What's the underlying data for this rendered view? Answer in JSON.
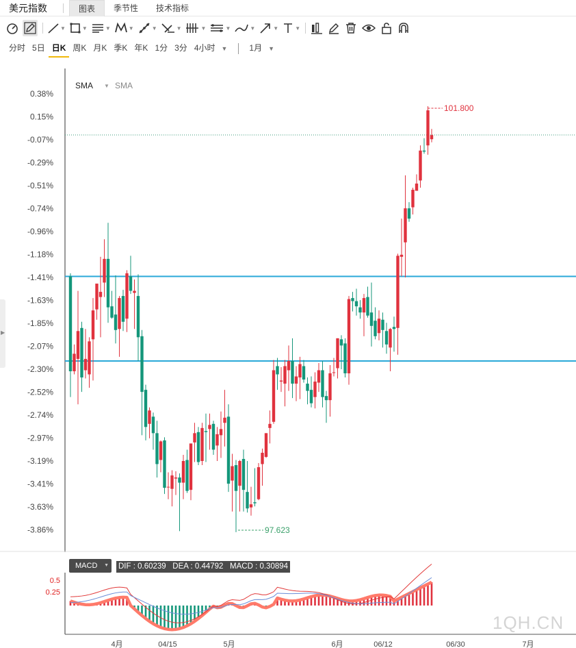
{
  "app": {
    "title": "美元指数"
  },
  "tabs": [
    {
      "label": "图表",
      "active": true
    },
    {
      "label": "季节性",
      "active": false
    },
    {
      "label": "技术指标",
      "active": false
    }
  ],
  "toolbar": {
    "tools": [
      "chart-type-icon",
      "pencil-icon",
      "line-icon",
      "rectangle-icon",
      "horizontal-lines-icon",
      "pattern-icon",
      "measure-icon",
      "fibonacci-icon",
      "bars-icon",
      "channel-icon",
      "brush-icon",
      "arrow-icon",
      "text-icon",
      "candles-icon",
      "edit-icon",
      "trash-icon",
      "eye-icon",
      "lock-icon",
      "magnet-icon"
    ]
  },
  "periods": {
    "items": [
      {
        "label": "分时",
        "active": false
      },
      {
        "label": "5日",
        "active": false
      },
      {
        "label": "日K",
        "active": true
      },
      {
        "label": "周K",
        "active": false
      },
      {
        "label": "月K",
        "active": false
      },
      {
        "label": "季K",
        "active": false
      },
      {
        "label": "年K",
        "active": false
      },
      {
        "label": "1分",
        "active": false
      },
      {
        "label": "3分",
        "active": false
      },
      {
        "label": "4小时",
        "active": false
      }
    ],
    "range": "1月"
  },
  "indicators": {
    "main": [
      "SMA",
      "SMA"
    ]
  },
  "macd": {
    "badge": "MACD",
    "values_text": "DIF : 0.60239   DEA : 0.44792   MACD : 0.30894",
    "dif": 0.60239,
    "dea": 0.44792,
    "macd": 0.30894,
    "y_ticks": [
      "0.5",
      "0.25"
    ]
  },
  "colors": {
    "up": "#e0323e",
    "down": "#14967a",
    "hline": "#2aa8d8",
    "dif": "#e23a3a",
    "dea": "#6b8ed8",
    "macd_smooth": "#ff7a6a",
    "axis_text": "#444444"
  },
  "chart_data": {
    "type": "candlestick",
    "y_ticks": [
      "0.38%",
      "0.15%",
      "-0.07%",
      "-0.29%",
      "-0.51%",
      "-0.74%",
      "-0.96%",
      "-1.18%",
      "-1.41%",
      "-1.63%",
      "-1.85%",
      "-2.07%",
      "-2.30%",
      "-2.52%",
      "-2.74%",
      "-2.97%",
      "-3.19%",
      "-3.41%",
      "-3.63%",
      "-3.86%"
    ],
    "x_ticks": [
      "4月",
      "04/15",
      "5月",
      "6月",
      "06/12",
      "06/30",
      "7月"
    ],
    "high_label": "101.800",
    "low_label": "97.623",
    "candles": [
      [
        -1.39,
        -2.31,
        -1.36,
        -2.56
      ],
      [
        -2.31,
        -2.14,
        -2.05,
        -2.34
      ],
      [
        -2.19,
        -1.92,
        -1.53,
        -2.63
      ],
      [
        -1.89,
        -2.37,
        -1.83,
        -2.51
      ],
      [
        -2.3,
        -2.19,
        -1.9,
        -2.38
      ],
      [
        -2.34,
        -2.02,
        -1.98,
        -2.47
      ],
      [
        -2.0,
        -1.72,
        -1.6,
        -2.4
      ],
      [
        -1.71,
        -1.46,
        -1.52,
        -1.81
      ],
      [
        -1.59,
        -1.54,
        -1.2,
        -1.98
      ],
      [
        -1.45,
        -1.22,
        -1.03,
        -1.59
      ],
      [
        -1.22,
        -1.69,
        -0.87,
        -1.84
      ],
      [
        -1.68,
        -1.79,
        -1.53,
        -1.8
      ],
      [
        -1.76,
        -1.91,
        -1.38,
        -2.04
      ],
      [
        -1.9,
        -1.6,
        -1.58,
        -2.17
      ],
      [
        -1.58,
        -1.83,
        -1.52,
        -1.92
      ],
      [
        -1.8,
        -1.36,
        -1.33,
        -1.93
      ],
      [
        -1.39,
        -1.53,
        -1.19,
        -1.56
      ],
      [
        -1.55,
        -1.53,
        -1.42,
        -1.9
      ],
      [
        -1.58,
        -1.98,
        -1.37,
        -2.21
      ],
      [
        -1.97,
        -2.51,
        -1.91,
        -2.93
      ],
      [
        -2.49,
        -2.85,
        -2.44,
        -2.98
      ],
      [
        -2.82,
        -2.69,
        -2.66,
        -2.96
      ],
      [
        -2.75,
        -2.91,
        -2.71,
        -3.07
      ],
      [
        -2.91,
        -3.21,
        -2.79,
        -3.34
      ],
      [
        -3.17,
        -2.99,
        -2.98,
        -3.29
      ],
      [
        -2.98,
        -3.44,
        -2.95,
        -3.5
      ],
      [
        -3.43,
        -3.43,
        -3.29,
        -3.55
      ],
      [
        -3.45,
        -3.32,
        -3.27,
        -3.62
      ],
      [
        -3.35,
        -3.34,
        -3.28,
        -3.51
      ],
      [
        -3.34,
        -3.39,
        -3.3,
        -3.86
      ],
      [
        -3.39,
        -3.18,
        -3.12,
        -3.55
      ],
      [
        -3.17,
        -3.47,
        -3.07,
        -3.49
      ],
      [
        -3.46,
        -3.01,
        -3.02,
        -3.56
      ],
      [
        -3.0,
        -2.91,
        -2.81,
        -3.19
      ],
      [
        -2.9,
        -3.19,
        -2.85,
        -3.22
      ],
      [
        -3.18,
        -2.86,
        -2.81,
        -3.22
      ],
      [
        -2.89,
        -2.9,
        -2.72,
        -3.19
      ],
      [
        -2.87,
        -2.83,
        -2.72,
        -3.07
      ],
      [
        -2.82,
        -3.07,
        -2.79,
        -3.12
      ],
      [
        -3.03,
        -2.92,
        -2.85,
        -3.18
      ],
      [
        -2.93,
        -2.87,
        -2.7,
        -3.15
      ],
      [
        -2.81,
        -2.76,
        -2.49,
        -3.04
      ],
      [
        -2.75,
        -3.4,
        -2.63,
        -3.48
      ],
      [
        -3.37,
        -3.23,
        -3.11,
        -3.67
      ],
      [
        -3.22,
        -3.47,
        -3.17,
        -3.87
      ],
      [
        -3.42,
        -3.18,
        -3.17,
        -3.67
      ],
      [
        -3.16,
        -3.46,
        -3.07,
        -3.67
      ],
      [
        -3.48,
        -3.64,
        -3.18,
        -3.68
      ],
      [
        -3.63,
        -3.6,
        -3.43,
        -3.71
      ],
      [
        -3.58,
        -3.59,
        -3.25,
        -3.62
      ],
      [
        -3.55,
        -3.24,
        -3.2,
        -3.56
      ],
      [
        -3.21,
        -3.1,
        -3.06,
        -3.42
      ],
      [
        -3.14,
        -2.91,
        -2.91,
        -3.15
      ],
      [
        -2.86,
        -2.82,
        -2.69,
        -3.01
      ],
      [
        -2.8,
        -2.3,
        -2.2,
        -2.82
      ],
      [
        -2.26,
        -2.34,
        -2.18,
        -2.49
      ],
      [
        -2.41,
        -2.4,
        -2.27,
        -2.51
      ],
      [
        -2.43,
        -2.26,
        -2.2,
        -2.65
      ],
      [
        -2.3,
        -2.21,
        -2.06,
        -2.5
      ],
      [
        -2.21,
        -2.43,
        -1.99,
        -2.57
      ],
      [
        -2.43,
        -2.36,
        -2.26,
        -2.6
      ],
      [
        -2.37,
        -2.24,
        -2.17,
        -2.58
      ],
      [
        -2.26,
        -2.39,
        -2.2,
        -2.42
      ],
      [
        -2.43,
        -2.5,
        -2.37,
        -2.63
      ],
      [
        -2.49,
        -2.62,
        -2.36,
        -2.66
      ],
      [
        -2.56,
        -2.41,
        -2.32,
        -2.67
      ],
      [
        -2.42,
        -2.3,
        -2.23,
        -2.51
      ],
      [
        -2.3,
        -2.56,
        -2.21,
        -2.66
      ],
      [
        -2.55,
        -2.59,
        -2.5,
        -2.81
      ],
      [
        -2.59,
        -2.33,
        -2.25,
        -2.75
      ],
      [
        -2.32,
        -2.32,
        -2.18,
        -2.36
      ],
      [
        -2.28,
        -1.99,
        -1.99,
        -2.38
      ],
      [
        -2.0,
        -2.06,
        -1.96,
        -2.29
      ],
      [
        -2.04,
        -2.33,
        -1.99,
        -2.37
      ],
      [
        -2.33,
        -1.61,
        -1.58,
        -2.44
      ],
      [
        -1.6,
        -1.63,
        -1.54,
        -1.73
      ],
      [
        -1.63,
        -1.68,
        -1.51,
        -1.77
      ],
      [
        -1.69,
        -1.74,
        -1.62,
        -1.8
      ],
      [
        -1.74,
        -1.6,
        -1.56,
        -1.97
      ],
      [
        -1.59,
        -1.77,
        -1.49,
        -1.79
      ],
      [
        -1.74,
        -1.87,
        -1.45,
        -2.07
      ],
      [
        -1.82,
        -1.97,
        -1.69,
        -2.0
      ],
      [
        -1.94,
        -1.8,
        -1.72,
        -2.01
      ],
      [
        -1.81,
        -1.91,
        -1.74,
        -2.08
      ],
      [
        -1.92,
        -2.05,
        -1.84,
        -2.14
      ],
      [
        -2.08,
        -1.9,
        -1.89,
        -2.31
      ],
      [
        -1.88,
        -1.9,
        -1.78,
        -2.12
      ],
      [
        -1.89,
        -1.19,
        -1.17,
        -2.15
      ],
      [
        -1.2,
        -1.18,
        -0.83,
        -1.39
      ],
      [
        -1.06,
        -0.73,
        -0.41,
        -1.4
      ],
      [
        -0.73,
        -0.83,
        -0.67,
        -0.86
      ],
      [
        -0.72,
        -0.55,
        -0.53,
        -0.79
      ],
      [
        -0.56,
        -0.49,
        -0.4,
        -0.55
      ],
      [
        -0.46,
        -0.17,
        -0.12,
        -0.53
      ],
      [
        -0.17,
        -0.18,
        -0.05,
        -0.2
      ],
      [
        -0.12,
        0.22,
        0.26,
        -0.21
      ],
      [
        -0.06,
        -0.02,
        0.04,
        -0.09
      ]
    ]
  }
}
